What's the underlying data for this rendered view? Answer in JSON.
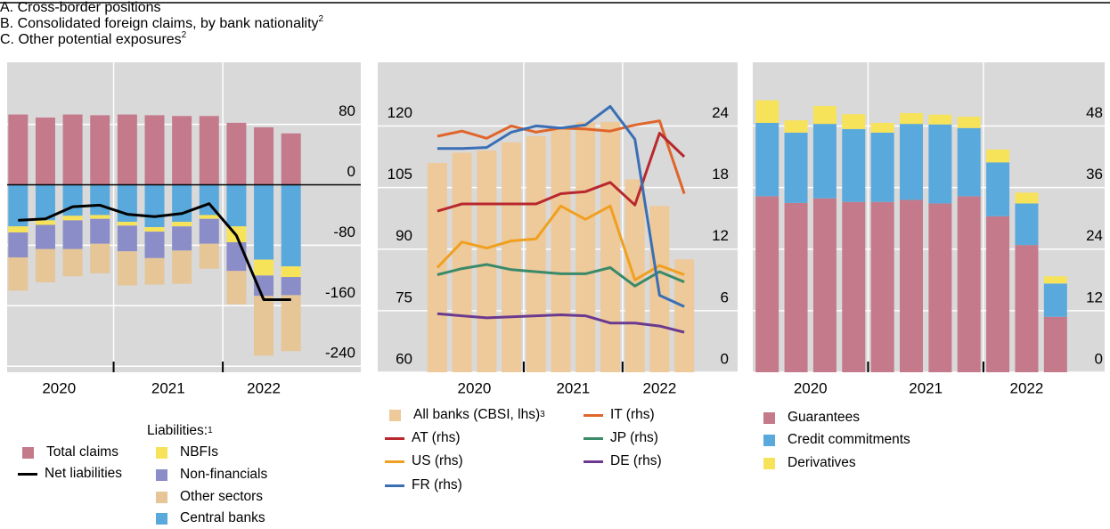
{
  "chart_data": [
    {
      "type": "bar",
      "stacked": true,
      "title": "A. Cross-border positions",
      "categories": [
        "2020",
        "2020",
        "2020",
        "2020",
        "2021",
        "2021",
        "2021",
        "2021",
        "2022",
        "2022",
        "2022"
      ],
      "ylim": [
        -248,
        162
      ],
      "yticks": [
        80,
        0,
        -80,
        -160,
        -240
      ],
      "grid": true,
      "zero_line": true,
      "y_axis_side": "right",
      "background": "#d9d9d9",
      "legend_heading": "Liabilities:",
      "legend_heading_note": "1",
      "series": [
        {
          "name": "Total claims",
          "color": "#c47a8a",
          "values": [
            93,
            89,
            93,
            92,
            93,
            92,
            91,
            91,
            82,
            76,
            68
          ]
        },
        {
          "name": "Central banks",
          "color": "#5aa9dd",
          "values": [
            -55,
            -47,
            -41,
            -40,
            -49,
            -56,
            -49,
            -40,
            -55,
            -99,
            -108
          ]
        },
        {
          "name": "NBFIs",
          "color": "#f7e35a",
          "values": [
            -8,
            -6,
            -6,
            -5,
            -5,
            -6,
            -6,
            -5,
            -21,
            -21,
            -14
          ]
        },
        {
          "name": "Non-financials",
          "color": "#8a8dc8",
          "values": [
            -33,
            -32,
            -38,
            -33,
            -34,
            -35,
            -32,
            -33,
            -38,
            -27,
            -24
          ]
        },
        {
          "name": "Other sectors",
          "color": "#e6c597",
          "values": [
            -44,
            -44,
            -36,
            -39,
            -45,
            -35,
            -44,
            -33,
            -44,
            -79,
            -74
          ]
        },
        {
          "name": "Net liabilities",
          "type": "line",
          "color": "#000000",
          "values": [
            -47,
            -45,
            -29,
            -27,
            -39,
            -42,
            -38,
            -25,
            -67,
            -152,
            -152
          ]
        }
      ]
    },
    {
      "type": "bar",
      "title": "B. Consolidated foreign claims, by bank nationality",
      "title_note": "2",
      "categories": [
        "2020",
        "2020",
        "2020",
        "2020",
        "2021",
        "2021",
        "2021",
        "2021",
        "2022",
        "2022",
        "2022"
      ],
      "ylim": [
        60,
        135.5
      ],
      "yticks": [
        60,
        75,
        90,
        105,
        120
      ],
      "y2lim": [
        0,
        30.2
      ],
      "y2ticks": [
        0,
        6,
        12,
        18,
        24
      ],
      "grid": true,
      "background": "#d9d9d9",
      "series": [
        {
          "name": "All banks (CBSI, lhs)",
          "note": "3",
          "color": "#eec99a",
          "values": [
            111,
            113.5,
            114,
            116,
            117.5,
            119.5,
            121,
            121,
            107,
            100.5,
            87.5
          ]
        },
        {
          "name": "IT (rhs)",
          "type": "line",
          "axis": "y2",
          "color": "#e0652a",
          "values": [
            23.0,
            23.5,
            22.8,
            24.0,
            23.4,
            23.8,
            23.7,
            23.5,
            24.1,
            24.5,
            17.4
          ]
        },
        {
          "name": "AT (rhs)",
          "type": "line",
          "axis": "y2",
          "color": "#b8282e",
          "values": [
            15.7,
            16.4,
            16.4,
            16.4,
            16.4,
            17.4,
            17.6,
            18.5,
            16.3,
            23.3,
            21.0
          ]
        },
        {
          "name": "JP (rhs)",
          "type": "line",
          "axis": "y2",
          "color": "#3a8a6a",
          "values": [
            9.5,
            10.1,
            10.5,
            10.0,
            9.8,
            9.6,
            9.6,
            10.2,
            8.4,
            9.8,
            8.8
          ]
        },
        {
          "name": "US (rhs)",
          "type": "line",
          "axis": "y2",
          "color": "#f0a020",
          "values": [
            10.2,
            12.7,
            12.1,
            12.8,
            13.0,
            16.2,
            14.9,
            16.2,
            9.0,
            10.4,
            9.5
          ]
        },
        {
          "name": "DE (rhs)",
          "type": "line",
          "axis": "y2",
          "color": "#6b3a8f",
          "values": [
            5.7,
            5.5,
            5.3,
            5.4,
            5.5,
            5.6,
            5.5,
            4.8,
            4.8,
            4.5,
            3.9
          ]
        },
        {
          "name": "FR (rhs)",
          "type": "line",
          "axis": "y2",
          "color": "#3a6fb5",
          "values": [
            21.8,
            21.8,
            21.9,
            23.4,
            24.0,
            23.8,
            24.1,
            25.9,
            22.7,
            7.5,
            6.4
          ]
        }
      ]
    },
    {
      "type": "bar",
      "stacked": true,
      "title": "C. Other potential exposures",
      "title_note": "2",
      "categories": [
        "2020",
        "2020",
        "2020",
        "2020",
        "2021",
        "2021",
        "2021",
        "2021",
        "2022",
        "2022",
        "2022"
      ],
      "ylim": [
        0,
        60.4
      ],
      "yticks": [
        0,
        12,
        24,
        36,
        48
      ],
      "grid": true,
      "y_axis_side": "right",
      "background": "#d9d9d9",
      "series": [
        {
          "name": "Guarantees",
          "color": "#c47a8a",
          "values": [
            34.3,
            33.0,
            33.9,
            33.2,
            33.2,
            33.6,
            32.9,
            34.3,
            30.4,
            24.8,
            10.8
          ]
        },
        {
          "name": "Credit commitments",
          "color": "#5aa9dd",
          "values": [
            14.3,
            13.7,
            14.5,
            14.2,
            13.5,
            14.8,
            15.4,
            13.3,
            10.5,
            8.1,
            6.5
          ]
        },
        {
          "name": "Derivatives",
          "color": "#f7e35a",
          "values": [
            4.4,
            2.4,
            3.5,
            2.9,
            1.9,
            2.1,
            1.9,
            2.2,
            2.5,
            2.1,
            1.4
          ]
        }
      ]
    }
  ]
}
